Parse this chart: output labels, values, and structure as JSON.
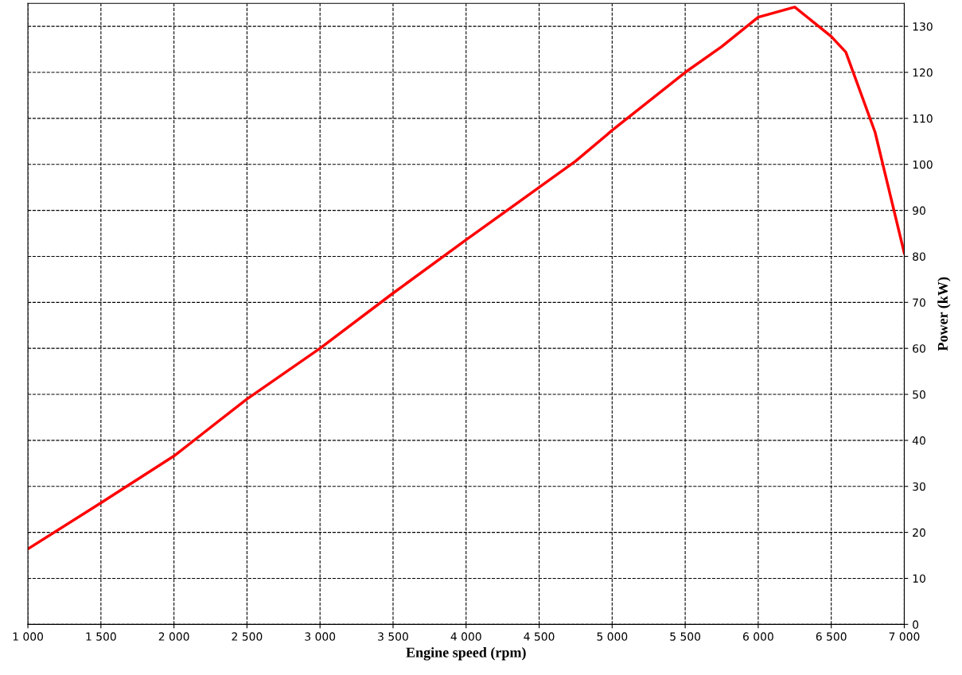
{
  "chart_data": {
    "type": "line",
    "xlabel": "Engine speed (rpm)",
    "ylabel": "Power (kW)",
    "x": [
      1000,
      1500,
      2000,
      2500,
      3000,
      3500,
      4000,
      4500,
      4750,
      5000,
      5500,
      5750,
      6000,
      6250,
      6500,
      6600,
      6800,
      7000
    ],
    "series": [
      {
        "color": "#ff0000",
        "values": [
          16.4,
          26.4,
          36.6,
          49,
          60,
          72,
          83.6,
          95,
          100.7,
          107.4,
          120,
          125.6,
          132,
          134.2,
          127.8,
          124.4,
          107,
          80.7
        ]
      }
    ],
    "xlim": [
      1000,
      7000
    ],
    "xticks": [
      {
        "value": 1000,
        "label": "1 000"
      },
      {
        "value": 1500,
        "label": "1 500"
      },
      {
        "value": 2000,
        "label": "2 000"
      },
      {
        "value": 2500,
        "label": "2 500"
      },
      {
        "value": 3000,
        "label": "3 000"
      },
      {
        "value": 3500,
        "label": "3 500"
      },
      {
        "value": 4000,
        "label": "4 000"
      },
      {
        "value": 4500,
        "label": "4 500"
      },
      {
        "value": 5000,
        "label": "5 000"
      },
      {
        "value": 5500,
        "label": "5 500"
      },
      {
        "value": 6000,
        "label": "6 000"
      },
      {
        "value": 6500,
        "label": "6 500"
      },
      {
        "value": 7000,
        "label": "7 000"
      }
    ],
    "ylim": [
      0,
      135
    ],
    "yticks": [
      0,
      10,
      20,
      30,
      40,
      50,
      60,
      70,
      80,
      90,
      100,
      110,
      120,
      130
    ],
    "grid": true,
    "marker": "none",
    "line_style": "solid"
  }
}
